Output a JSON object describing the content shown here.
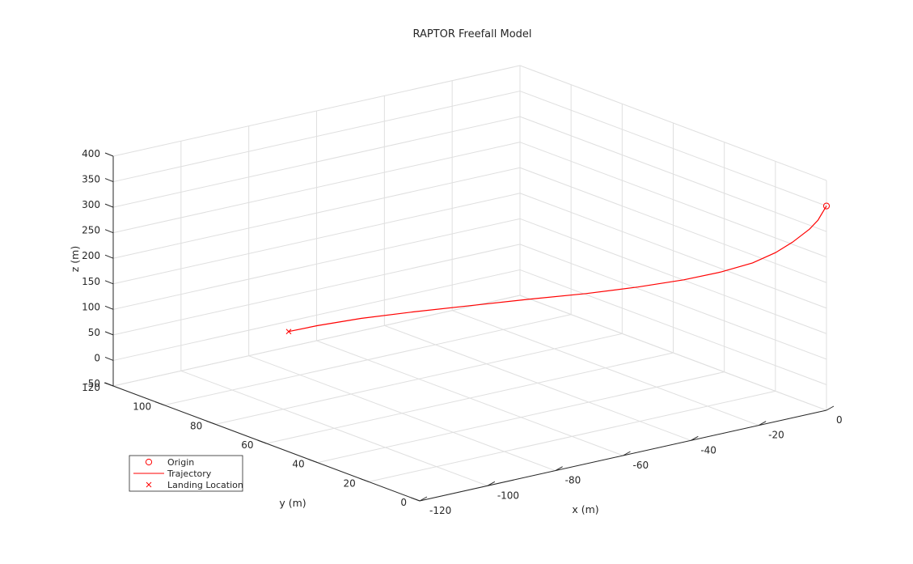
{
  "chart_data": {
    "type": "line3d",
    "title": "RAPTOR Freefall Model",
    "xlabel": "x (m)",
    "ylabel": "y (m)",
    "zlabel": "z (m)",
    "xlim": [
      -120,
      0
    ],
    "ylim": [
      0,
      120
    ],
    "zlim": [
      -50,
      400
    ],
    "x_ticks": [
      "-120",
      "-100",
      "-80",
      "-60",
      "-40",
      "-20",
      "0"
    ],
    "y_ticks": [
      "0",
      "20",
      "40",
      "60",
      "80",
      "100",
      "120"
    ],
    "z_ticks": [
      "-50",
      "0",
      "50",
      "100",
      "150",
      "200",
      "250",
      "300",
      "350",
      "400"
    ],
    "grid": true,
    "legend_position": "bottom-left",
    "series": [
      {
        "name": "Origin",
        "marker": "o",
        "color": "#ff0000",
        "points": [
          [
            0,
            0,
            350
          ]
        ]
      },
      {
        "name": "Trajectory",
        "marker": "line",
        "color": "#ff0000",
        "points": [
          [
            0,
            0,
            350
          ],
          [
            -0.3,
            0.7,
            340
          ],
          [
            -1,
            2,
            320
          ],
          [
            -2,
            4,
            300
          ],
          [
            -4,
            8,
            270
          ],
          [
            -6,
            12,
            245
          ],
          [
            -9,
            17,
            220
          ],
          [
            -13,
            24,
            195
          ],
          [
            -18,
            32,
            172
          ],
          [
            -24,
            42,
            148
          ],
          [
            -31,
            53,
            125
          ],
          [
            -39,
            65,
            103
          ],
          [
            -47,
            77,
            80
          ],
          [
            -55,
            89,
            57
          ],
          [
            -62,
            100,
            34
          ],
          [
            -68,
            109,
            12
          ],
          [
            -72,
            115,
            -5
          ]
        ]
      },
      {
        "name": "Landing Location",
        "marker": "x",
        "color": "#ff0000",
        "points": [
          [
            -72,
            115,
            -5
          ]
        ]
      }
    ]
  }
}
